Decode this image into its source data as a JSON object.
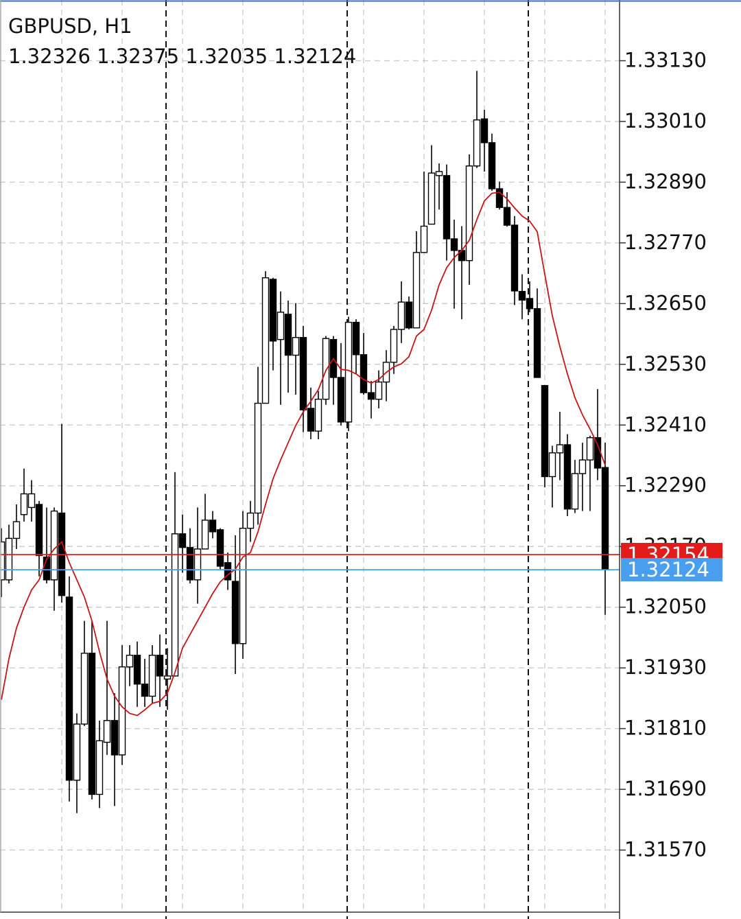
{
  "chart_data": {
    "type": "candlestick",
    "title": "GBPUSD, H1",
    "subtitle": "1.32326 1.32375 1.32035 1.32124",
    "up_color": "#ffffff",
    "down_color": "#000000",
    "open": [
      1.32104,
      1.32104,
      1.32186,
      1.32233,
      1.32247,
      1.32253,
      1.32149,
      1.32104,
      1.32236,
      1.3207,
      1.31708,
      1.31819,
      1.31959,
      1.3168,
      1.31783,
      1.31826,
      1.31758,
      1.31932,
      1.31955,
      1.31898,
      1.31874,
      1.31955,
      1.31908,
      1.31914,
      1.32195,
      1.32168,
      1.32104,
      1.32165,
      1.32222,
      1.32203,
      1.32138,
      1.32101,
      1.31978,
      1.32206,
      1.32236,
      1.32453,
      1.32698,
      1.32579,
      1.32629,
      1.32548,
      1.32583,
      1.32443,
      1.32398,
      1.32461,
      1.32579,
      1.32504,
      1.32416,
      1.32613,
      1.32549,
      1.32474,
      1.32461,
      1.32495,
      1.32534,
      1.32599,
      1.32653,
      1.32602,
      1.32751,
      1.32807,
      1.32903,
      1.32903,
      1.32778,
      1.32755,
      1.32735,
      1.32922,
      1.33015,
      1.32968,
      1.32877,
      1.3284,
      1.32805,
      1.32674,
      1.3266,
      1.3264,
      1.32488,
      1.32308,
      1.32355,
      1.32371,
      1.32244,
      1.32314,
      1.32341,
      1.32385,
      1.32326
    ],
    "high": [
      1.32206,
      1.32213,
      1.32253,
      1.32324,
      1.32301,
      1.3226,
      1.32247,
      1.32247,
      1.32412,
      1.32111,
      1.3184,
      1.32023,
      1.32023,
      1.31826,
      1.32023,
      1.3188,
      1.31975,
      1.31975,
      1.31982,
      1.31948,
      1.31975,
      1.31996,
      1.31969,
      1.32317,
      1.32233,
      1.32206,
      1.32247,
      1.32274,
      1.3224,
      1.32206,
      1.32158,
      1.32192,
      1.3224,
      1.3226,
      1.32525,
      1.32714,
      1.32701,
      1.32674,
      1.32656,
      1.32651,
      1.32606,
      1.32484,
      1.32477,
      1.32586,
      1.32586,
      1.32572,
      1.32624,
      1.32619,
      1.32592,
      1.32497,
      1.32518,
      1.32558,
      1.32606,
      1.32694,
      1.32664,
      1.32793,
      1.32911,
      1.32963,
      1.32927,
      1.32925,
      1.32816,
      1.32803,
      1.32945,
      1.3311,
      1.33033,
      1.32986,
      1.32891,
      1.3287,
      1.32823,
      1.32708,
      1.32694,
      1.3268,
      1.32488,
      1.32369,
      1.32436,
      1.32392,
      1.32341,
      1.32375,
      1.32389,
      1.32481,
      1.32375
    ],
    "low": [
      1.3207,
      1.32097,
      1.32165,
      1.32219,
      1.32219,
      1.32111,
      1.32097,
      1.32043,
      1.32059,
      1.31666,
      1.31643,
      1.31815,
      1.3167,
      1.31653,
      1.31758,
      1.31657,
      1.31738,
      1.31894,
      1.31853,
      1.31853,
      1.3186,
      1.31853,
      1.31847,
      1.31914,
      1.32118,
      1.32097,
      1.32057,
      1.32165,
      1.32186,
      1.32125,
      1.32084,
      1.31918,
      1.31948,
      1.32179,
      1.32213,
      1.32453,
      1.32518,
      1.3245,
      1.32474,
      1.3247,
      1.32396,
      1.32382,
      1.32382,
      1.3245,
      1.3245,
      1.32409,
      1.32398,
      1.32511,
      1.3247,
      1.32423,
      1.32443,
      1.32457,
      1.32511,
      1.32572,
      1.32599,
      1.32602,
      1.32751,
      1.32807,
      1.32836,
      1.32735,
      1.3264,
      1.32619,
      1.32687,
      1.32918,
      1.32911,
      1.32873,
      1.32836,
      1.32802,
      1.32647,
      1.32619,
      1.32633,
      1.32504,
      1.32287,
      1.32247,
      1.32301,
      1.3223,
      1.32236,
      1.3224,
      1.3224,
      1.32301,
      1.32035
    ],
    "close": [
      1.32179,
      1.32186,
      1.32219,
      1.32274,
      1.32274,
      1.32152,
      1.32104,
      1.3224,
      1.32073,
      1.31708,
      1.31819,
      1.31959,
      1.3168,
      1.31786,
      1.31826,
      1.31758,
      1.31932,
      1.31955,
      1.31898,
      1.31874,
      1.31955,
      1.31914,
      1.31914,
      1.32195,
      1.32168,
      1.32104,
      1.32165,
      1.32222,
      1.32199,
      1.32131,
      1.32104,
      1.31978,
      1.32206,
      1.32236,
      1.32453,
      1.32701,
      1.32576,
      1.32633,
      1.32548,
      1.32583,
      1.3244,
      1.32398,
      1.32461,
      1.32581,
      1.32504,
      1.32416,
      1.32613,
      1.32549,
      1.32474,
      1.32461,
      1.32495,
      1.32534,
      1.32599,
      1.32653,
      1.32602,
      1.32751,
      1.32803,
      1.32908,
      1.32911,
      1.32778,
      1.32755,
      1.32735,
      1.32922,
      1.33013,
      1.32968,
      1.32877,
      1.3284,
      1.32805,
      1.32675,
      1.32657,
      1.3264,
      1.32504,
      1.32308,
      1.32355,
      1.32371,
      1.32244,
      1.32314,
      1.32341,
      1.32385,
      1.32325,
      1.32124
    ],
    "ma": {
      "color": "#c81414",
      "values": [
        1.31867,
        1.31948,
        1.32009,
        1.3205,
        1.32084,
        1.32104,
        1.32145,
        1.32165,
        1.32179,
        1.32138,
        1.32104,
        1.3207,
        1.32023,
        1.31962,
        1.31908,
        1.31874,
        1.31853,
        1.3184,
        1.31836,
        1.31847,
        1.3186,
        1.31864,
        1.3188,
        1.31921,
        1.31969,
        1.31996,
        1.32023,
        1.3205,
        1.32077,
        1.321,
        1.32114,
        1.32125,
        1.32149,
        1.32158,
        1.32199,
        1.32253,
        1.32304,
        1.32341,
        1.32375,
        1.32409,
        1.32436,
        1.32457,
        1.3248,
        1.32518,
        1.32541,
        1.3252,
        1.32518,
        1.32511,
        1.325,
        1.32493,
        1.325,
        1.32514,
        1.32525,
        1.32531,
        1.32545,
        1.32586,
        1.32599,
        1.32637,
        1.32687,
        1.32721,
        1.32741,
        1.32755,
        1.32775,
        1.32816,
        1.32853,
        1.32868,
        1.3287,
        1.32857,
        1.32839,
        1.32823,
        1.32813,
        1.32792,
        1.32708,
        1.32626,
        1.32565,
        1.32511,
        1.32464,
        1.3243,
        1.32402,
        1.32371,
        1.32331
      ]
    },
    "price_lines": [
      {
        "value": 1.32154,
        "color": "#e41b1b"
      },
      {
        "value": 1.32124,
        "color": "#4a9ef0"
      }
    ],
    "ylim": [
      1.3145,
      1.3325
    ],
    "yticks": [
      {
        "value": 1.3157,
        "label": "1.31570"
      },
      {
        "value": 1.3169,
        "label": "1.31690"
      },
      {
        "value": 1.3181,
        "label": "1.31810"
      },
      {
        "value": 1.3193,
        "label": "1.31930"
      },
      {
        "value": 1.3205,
        "label": "1.32050"
      },
      {
        "value": 1.3217,
        "label": "1.32170"
      },
      {
        "value": 1.3229,
        "label": "1.32290"
      },
      {
        "value": 1.3241,
        "label": "1.32410"
      },
      {
        "value": 1.3253,
        "label": "1.32530"
      },
      {
        "value": 1.3265,
        "label": "1.32650"
      },
      {
        "value": 1.3277,
        "label": "1.32770"
      },
      {
        "value": 1.3289,
        "label": "1.32890"
      },
      {
        "value": 1.3301,
        "label": "1.33010"
      },
      {
        "value": 1.3313,
        "label": "1.33130"
      }
    ],
    "grid": true
  }
}
